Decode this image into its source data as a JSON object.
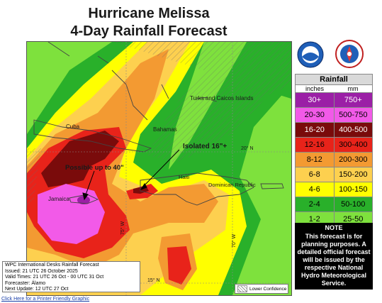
{
  "title_line1": "Hurricane Melissa",
  "title_line2": "4-Day Rainfall Forecast",
  "labels": {
    "turks": "Turks and Caicos Islands",
    "cuba": "Cuba",
    "bahamas": "Bahamas",
    "isolated": "Isolated 16\"+",
    "lat20": "20° N",
    "possible": "Possible up to 40\"",
    "haiti": "Haiti",
    "dr": "Dominican Republic",
    "jamaica": "Jamaica",
    "lon75": "75° W",
    "lon70": "70° W",
    "lat15": "15° N"
  },
  "legend": {
    "title": "Rainfall",
    "unit_in": "inches",
    "unit_mm": "mm",
    "rows": [
      {
        "in": "30+",
        "mm": "750+",
        "color": "#9b1fa6",
        "text": "#ffffff"
      },
      {
        "in": "20-30",
        "mm": "500-750",
        "color": "#f25ae8",
        "text": "#000000"
      },
      {
        "in": "16-20",
        "mm": "400-500",
        "color": "#7a0b0b",
        "text": "#ffffff"
      },
      {
        "in": "12-16",
        "mm": "300-400",
        "color": "#e8231a",
        "text": "#000000"
      },
      {
        "in": "8-12",
        "mm": "200-300",
        "color": "#f39a32",
        "text": "#000000"
      },
      {
        "in": "6-8",
        "mm": "150-200",
        "color": "#fdd04f",
        "text": "#000000"
      },
      {
        "in": "4-6",
        "mm": "100-150",
        "color": "#ffff00",
        "text": "#000000"
      },
      {
        "in": "2-4",
        "mm": "50-100",
        "color": "#29b02a",
        "text": "#000000"
      },
      {
        "in": "1-2",
        "mm": "25-50",
        "color": "#7ee13d",
        "text": "#000000"
      }
    ]
  },
  "note": {
    "head": "NOTE",
    "body": "This forecast is for planning purposes. A detailed official forecast will be issued by the respective National Hydro Meteorological Service."
  },
  "info": {
    "line1": "WPC International Desks Rainfall Forecast",
    "line2": "Issued: 21 UTC 26 October 2025",
    "line3": "Valid Times: 21 UTC 26 Oct - 00 UTC 31 Oct",
    "line4": "Forecaster: Álamo",
    "line5": "Next Update: 12 UTC 27 Oct"
  },
  "confidence_label": "Lower Confidence",
  "footer": "Click Here for a Printer Friendly Graphic",
  "logos": {
    "noaa": "noaa-logo",
    "nws": "nws-logo"
  }
}
